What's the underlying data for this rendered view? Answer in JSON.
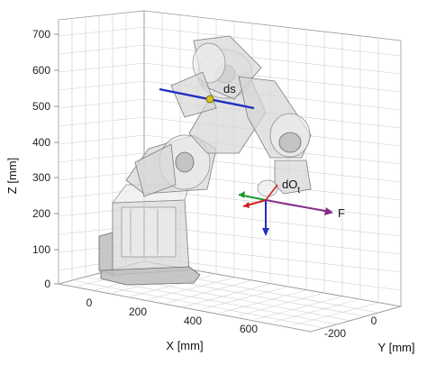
{
  "plot": {
    "z_axis_label": "Z [mm]",
    "x_axis_label": "X [mm]",
    "y_axis_label": "Y [mm]",
    "z_ticks": [
      "700",
      "600",
      "500",
      "400",
      "300",
      "200",
      "100",
      "0"
    ],
    "x_ticks": [
      "0",
      "200",
      "400",
      "600"
    ],
    "y_ticks": [
      "-200",
      "0"
    ]
  },
  "annotations": {
    "ds_label": "ds",
    "dOt_label": "dO",
    "dOt_subscript": "t",
    "force_label": "F"
  },
  "colors": {
    "ds_vector": "#1f2fbf",
    "force_vector": "#8a2b8a",
    "frame_x": "#d42020",
    "frame_y": "#1a9a2a",
    "frame_z": "#1f2fbf",
    "grid": "#cfcfcf"
  }
}
